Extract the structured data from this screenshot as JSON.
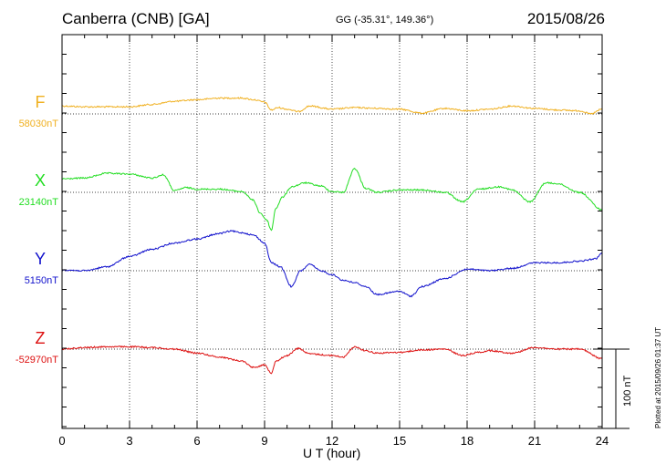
{
  "header": {
    "station": "Canberra (CNB)  [GA]",
    "coords": "GG (-35.31°, 149.36°)",
    "date": "2015/08/26",
    "plotted": "Plotted at 2015/09/26 01:37 UT"
  },
  "colors": {
    "F": "#f0b020",
    "X": "#22dd22",
    "Y": "#1010cc",
    "Z": "#dd1010"
  },
  "chart_data": {
    "type": "line",
    "title": "Canberra (CNB)  [GA]",
    "xlabel": "U T (hour)",
    "xlim": [
      0,
      24
    ],
    "xticks": [
      0,
      3,
      6,
      9,
      12,
      15,
      18,
      21,
      24
    ],
    "ylabel": "",
    "scale_bar": {
      "label": "100 nT",
      "value": 100
    },
    "grid": true,
    "series": [
      {
        "name": "F",
        "baseline": "58030nT",
        "x": [
          0,
          1,
          2,
          3,
          4,
          5,
          6,
          7,
          8,
          8.5,
          9,
          9.3,
          9.6,
          10,
          10.5,
          11,
          12,
          13,
          14,
          15,
          16,
          17,
          18,
          19,
          20,
          21,
          22,
          23,
          23.5,
          24
        ],
        "values": [
          10,
          9,
          9,
          9,
          12,
          16,
          18,
          20,
          20,
          18,
          15,
          5,
          8,
          6,
          3,
          10,
          6,
          8,
          7,
          6,
          1,
          7,
          4,
          6,
          10,
          7,
          5,
          4,
          0,
          6
        ]
      },
      {
        "name": "X",
        "baseline": "23140nT",
        "x": [
          0,
          1,
          2,
          3,
          4,
          4.5,
          5,
          5.5,
          6,
          7,
          8,
          8.5,
          8.8,
          9.1,
          9.3,
          9.5,
          9.8,
          10.2,
          10.8,
          11.5,
          12,
          12.5,
          13,
          13.5,
          14,
          15,
          16,
          17,
          17.8,
          18.5,
          19.5,
          20,
          20.8,
          21.5,
          22,
          23,
          24
        ],
        "values": [
          17,
          18,
          24,
          23,
          18,
          22,
          2,
          6,
          4,
          4,
          1,
          -10,
          -26,
          -35,
          -48,
          -20,
          -6,
          7,
          12,
          8,
          1,
          0,
          30,
          5,
          0,
          3,
          3,
          0,
          -12,
          4,
          7,
          3,
          -12,
          12,
          11,
          0,
          -22
        ]
      },
      {
        "name": "Y",
        "baseline": "5150nT",
        "x": [
          0,
          1,
          2,
          3,
          4,
          5,
          6,
          7,
          7.5,
          8,
          8.5,
          9,
          9.3,
          9.7,
          10.2,
          10.6,
          11,
          11.5,
          12,
          12.5,
          13,
          13.5,
          14,
          15,
          15.5,
          16,
          17,
          18,
          19,
          20,
          21,
          22,
          23,
          23.7,
          24
        ],
        "values": [
          1,
          0,
          5,
          18,
          27,
          35,
          40,
          47,
          50,
          48,
          45,
          35,
          10,
          5,
          -20,
          0,
          8,
          0,
          -5,
          -12,
          -15,
          -20,
          -30,
          -26,
          -32,
          -20,
          -10,
          2,
          0,
          3,
          10,
          10,
          12,
          15,
          22
        ]
      },
      {
        "name": "Z",
        "baseline": "-52970nT",
        "x": [
          0,
          1,
          2,
          3,
          4,
          5,
          6,
          7,
          8,
          8.5,
          9,
          9.3,
          9.5,
          10,
          10.5,
          11,
          12,
          12.5,
          13,
          13.5,
          14,
          15,
          16,
          17,
          17.8,
          18.5,
          19,
          20,
          21,
          22,
          23,
          24
        ],
        "values": [
          0,
          2,
          3,
          3,
          2,
          0,
          -5,
          -10,
          -15,
          -23,
          -20,
          -30,
          -15,
          -8,
          1,
          -6,
          -8,
          -10,
          3,
          -2,
          -5,
          -4,
          -1,
          0,
          -8,
          -4,
          -2,
          -5,
          2,
          0,
          0,
          -12
        ]
      }
    ]
  }
}
